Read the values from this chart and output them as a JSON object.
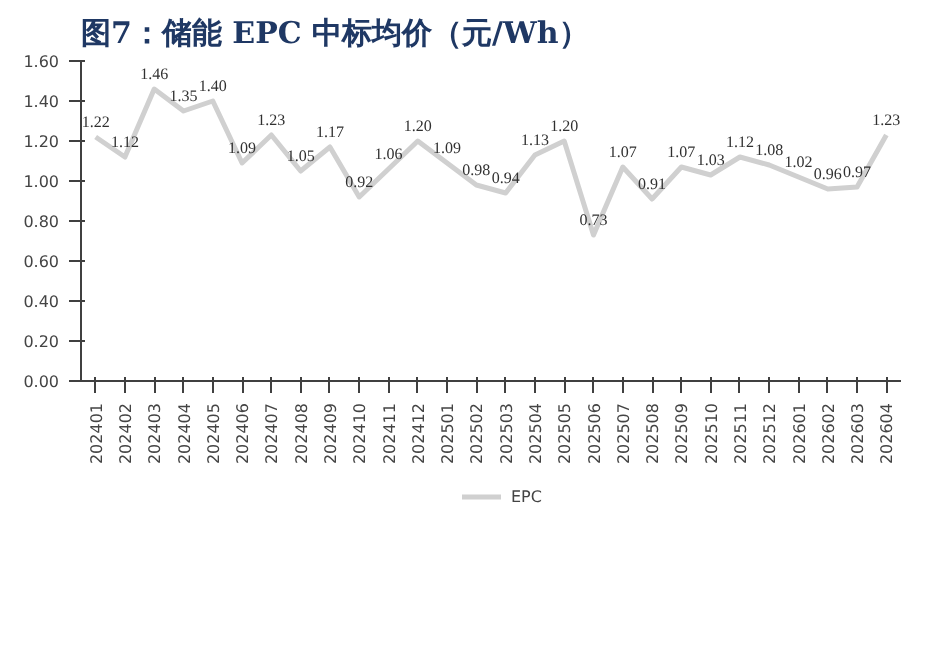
{
  "chart_data": {
    "type": "line",
    "title": "图7：储能 EPC 中标均价（元/Wh）",
    "categories": [
      "202401",
      "202402",
      "202403",
      "202404",
      "202405",
      "202406",
      "202407",
      "202408",
      "202409",
      "202410",
      "202411",
      "202412",
      "202501",
      "202502",
      "202503",
      "202504",
      "202505",
      "202506",
      "202507",
      "202508",
      "202509",
      "202510",
      "202511",
      "202512",
      "202601",
      "202602",
      "202603",
      "202604"
    ],
    "series": [
      {
        "name": "EPC",
        "color": "#d0d0d0",
        "values": [
          1.22,
          1.12,
          1.46,
          1.35,
          1.4,
          1.09,
          1.23,
          1.05,
          1.17,
          0.92,
          1.06,
          1.2,
          1.09,
          0.98,
          0.94,
          1.13,
          1.2,
          0.73,
          1.07,
          0.91,
          1.07,
          1.03,
          1.12,
          1.08,
          1.02,
          0.96,
          0.97,
          1.23
        ],
        "value_labels": [
          "1.22",
          "1.12",
          "1.46",
          "1.35",
          "1.40",
          "1.09",
          "1.23",
          "1.05",
          "1.17",
          "0.92",
          "1.06",
          "1.20",
          "1.09",
          "0.98",
          "0.94",
          "1.13",
          "1.20",
          "0.73",
          "1.07",
          "0.91",
          "1.07",
          "1.03",
          "1.12",
          "1.08",
          "1.02",
          "0.96",
          "0.97",
          "1.23"
        ]
      }
    ],
    "ylim": [
      0,
      1.6
    ],
    "yticks": [
      {
        "value": 0,
        "label": "0.00"
      },
      {
        "value": 0.2,
        "label": "0.20"
      },
      {
        "value": 0.4,
        "label": "0.40"
      },
      {
        "value": 0.6,
        "label": "0.60"
      },
      {
        "value": 0.8,
        "label": "0.80"
      },
      {
        "value": 1.0,
        "label": "1.00"
      },
      {
        "value": 1.2,
        "label": "1.20"
      },
      {
        "value": 1.4,
        "label": "1.40"
      },
      {
        "value": 1.6,
        "label": "1.60"
      }
    ],
    "grid": false,
    "legend": "bottom",
    "marker": "none",
    "line_style": "solid"
  }
}
